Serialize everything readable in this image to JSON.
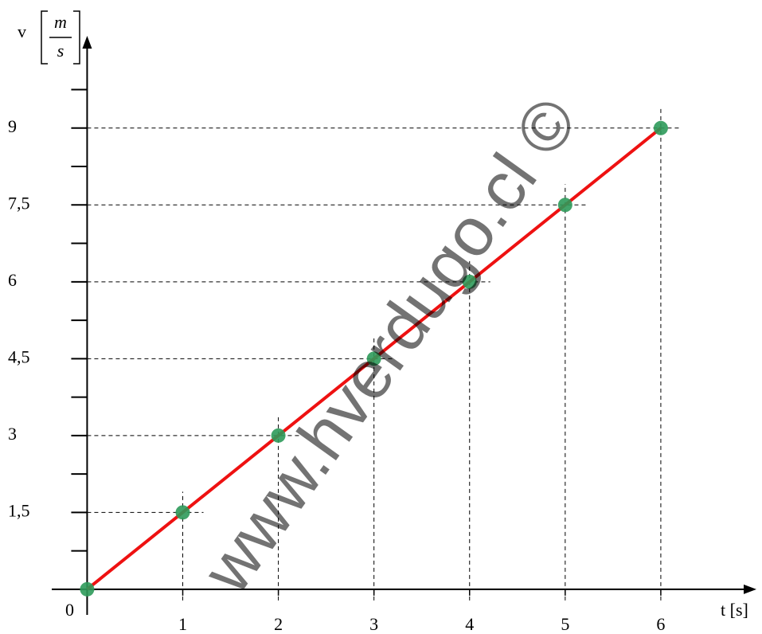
{
  "chart_data": {
    "type": "line",
    "y_axis_label": "v",
    "y_unit_numerator": "m",
    "y_unit_denominator": "s",
    "x_axis_label": "t [s]",
    "origin_label": "0",
    "watermark": "www.hverdugo.cl ©",
    "x": [
      0,
      1,
      2,
      3,
      4,
      5,
      6
    ],
    "series": [
      {
        "color": "#ee1111",
        "marker_color": "#2e9a5a",
        "values": [
          0,
          1.5,
          3,
          4.5,
          6,
          7.5,
          9
        ]
      }
    ],
    "xlim": [
      -0.37,
      7
    ],
    "ylim": [
      -0.5,
      10.8
    ],
    "xticks": [
      1,
      2,
      3,
      4,
      5,
      6
    ],
    "yticks": [
      {
        "value": 1.5,
        "label": "1,5"
      },
      3,
      {
        "value": 4.5,
        "label": "4,5"
      },
      6,
      {
        "value": 7.5,
        "label": "7,5"
      },
      9
    ],
    "yticks_minor": [
      0.75,
      1.5,
      2.25,
      3,
      3.75,
      4.5,
      5.25,
      6,
      6.75,
      7.5,
      8.25,
      9,
      9.75
    ]
  }
}
